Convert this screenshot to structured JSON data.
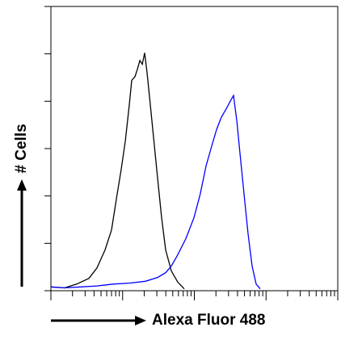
{
  "chart_data": {
    "type": "line",
    "xlabel": "Alexa Fluor 488",
    "ylabel": "# Cells",
    "xscale": "log",
    "xlim": [
      1,
      10000
    ],
    "xticks": [
      1,
      10,
      100,
      1000,
      10000
    ],
    "ylim": [
      0,
      300
    ],
    "yticks": [
      0,
      50,
      100,
      150,
      200,
      250,
      300
    ],
    "series": [
      {
        "color": "#000000",
        "x": [
          1,
          1.55,
          2.29,
          3.39,
          4.39,
          5.69,
          7.0,
          8.39,
          9.56,
          10.9,
          12.4,
          13.4,
          14.9,
          16.1,
          17.4,
          18.8,
          20.3,
          21.9,
          23.7,
          27.0,
          30.7,
          35.0,
          39.8,
          47.7,
          58.7,
          72.3
        ],
        "values": [
          4,
          3,
          7,
          13,
          24,
          43,
          64,
          102,
          128,
          158,
          196,
          222,
          226,
          234,
          243,
          239,
          251,
          230,
          205,
          162,
          119,
          77,
          43,
          21,
          9,
          2
        ]
      },
      {
        "color": "#0000ff",
        "x": [
          1,
          1.55,
          2.61,
          4.39,
          7.37,
          12.4,
          20.8,
          30.7,
          39.8,
          47.7,
          58.7,
          76.1,
          98.7,
          121,
          146,
          175,
          204,
          238,
          279,
          317,
          352,
          391,
          433,
          493,
          561,
          639,
          728,
          829
        ],
        "values": [
          4,
          3,
          4,
          5,
          7,
          8,
          10,
          14,
          19,
          26,
          38,
          55,
          77,
          102,
          132,
          153,
          170,
          183,
          192,
          200,
          206,
          179,
          145,
          102,
          60,
          26,
          7,
          2
        ]
      }
    ]
  }
}
